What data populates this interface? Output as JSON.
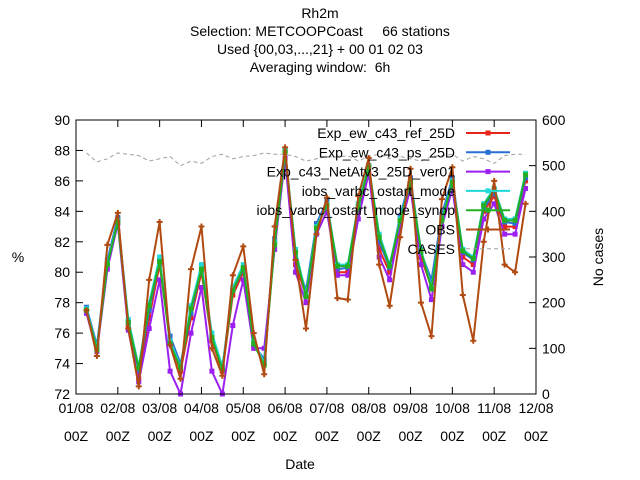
{
  "chart_data": {
    "type": "line",
    "title_lines": [
      "Rh2m",
      "Selection: METCOOPCoast     66 stations",
      "Used {00,03,...,21} + 00 01 02 03",
      "Averaging window:  6h"
    ],
    "xlabel": "Date",
    "ylabel": "%",
    "y2label": "No cases",
    "xlim": [
      0,
      11
    ],
    "ylim": [
      72,
      90
    ],
    "y2lim": [
      0,
      600
    ],
    "yticks": [
      "72",
      "74",
      "76",
      "78",
      "80",
      "82",
      "84",
      "86",
      "88",
      "90"
    ],
    "y2ticks": [
      "0",
      "100",
      "200",
      "300",
      "400",
      "500",
      "600"
    ],
    "xticks": [
      {
        "top": "01/08",
        "bottom": "00Z"
      },
      {
        "top": "02/08",
        "bottom": "00Z"
      },
      {
        "top": "03/08",
        "bottom": "00Z"
      },
      {
        "top": "04/08",
        "bottom": "00Z"
      },
      {
        "top": "05/08",
        "bottom": "00Z"
      },
      {
        "top": "06/08",
        "bottom": "00Z"
      },
      {
        "top": "07/08",
        "bottom": "00Z"
      },
      {
        "top": "08/08",
        "bottom": "00Z"
      },
      {
        "top": "09/08",
        "bottom": "00Z"
      },
      {
        "top": "10/08",
        "bottom": "00Z"
      },
      {
        "top": "11/08",
        "bottom": "00Z"
      },
      {
        "top": "12/08",
        "bottom": "00Z"
      }
    ],
    "legend_position": "top-right",
    "x": [
      0.25,
      0.5,
      0.75,
      1.0,
      1.25,
      1.5,
      1.75,
      2.0,
      2.25,
      2.5,
      2.75,
      3.0,
      3.25,
      3.5,
      3.75,
      4.0,
      4.25,
      4.5,
      4.75,
      5.0,
      5.25,
      5.5,
      5.75,
      6.0,
      6.25,
      6.5,
      6.75,
      7.0,
      7.25,
      7.5,
      7.75,
      8.0,
      8.25,
      8.5,
      8.75,
      9.0,
      9.25,
      9.5,
      9.75,
      10.0,
      10.25,
      10.5,
      10.75
    ],
    "series": [
      {
        "name": "Exp_ew_c43_ref_25D",
        "color": "#e8251a",
        "marker": "square",
        "axis": "y",
        "values": [
          77.5,
          75.0,
          80.5,
          83.5,
          76.5,
          73.0,
          77.0,
          80.5,
          75.5,
          73.5,
          77.0,
          80.0,
          75.5,
          73.5,
          78.5,
          80.0,
          75.5,
          74.0,
          82.0,
          88.0,
          80.5,
          78.5,
          83.0,
          84.5,
          80.0,
          80.0,
          84.0,
          87.0,
          81.5,
          80.0,
          83.5,
          86.0,
          81.0,
          79.0,
          83.5,
          86.0,
          81.0,
          80.5,
          84.0,
          85.0,
          83.0,
          83.0,
          86.0
        ]
      },
      {
        "name": "Exp_ew_c43_ps_25D",
        "color": "#2b6fd4",
        "marker": "square",
        "axis": "y",
        "values": [
          77.7,
          75.2,
          80.8,
          83.6,
          76.8,
          73.5,
          77.5,
          80.8,
          75.8,
          74.0,
          77.3,
          80.3,
          75.8,
          73.8,
          78.8,
          80.2,
          75.2,
          74.3,
          82.2,
          88.0,
          81.0,
          78.8,
          83.2,
          84.7,
          80.2,
          80.3,
          84.2,
          87.0,
          82.0,
          80.3,
          83.7,
          86.2,
          81.3,
          79.5,
          83.8,
          86.2,
          81.3,
          80.8,
          84.2,
          85.2,
          83.3,
          83.2,
          86.2
        ]
      },
      {
        "name": "Exp_c43_NetAtv3_25D_ver01",
        "color": "#9b1ff0",
        "marker": "square",
        "axis": "y",
        "values": [
          77.3,
          74.8,
          80.2,
          83.2,
          76.2,
          72.8,
          76.3,
          79.5,
          73.5,
          72.0,
          76.0,
          79.0,
          73.5,
          72.0,
          76.5,
          79.5,
          75.0,
          75.0,
          81.5,
          87.5,
          80.0,
          78.0,
          82.5,
          84.0,
          79.8,
          79.8,
          83.5,
          86.5,
          81.0,
          79.5,
          83.0,
          85.5,
          80.5,
          78.2,
          83.0,
          85.5,
          80.5,
          80.0,
          83.5,
          84.5,
          82.5,
          82.5,
          85.5
        ]
      },
      {
        "name": "iobs_varbc_ostart_mode",
        "color": "#20d8d8",
        "marker": "square",
        "axis": "y",
        "values": [
          77.6,
          75.0,
          80.6,
          83.4,
          76.9,
          73.8,
          78.0,
          81.0,
          75.5,
          73.8,
          77.8,
          80.5,
          76.0,
          73.8,
          79.0,
          80.5,
          75.5,
          74.0,
          82.0,
          88.0,
          81.5,
          78.5,
          83.0,
          84.5,
          80.5,
          80.5,
          84.5,
          87.0,
          82.5,
          80.5,
          83.5,
          86.0,
          81.5,
          79.0,
          83.5,
          86.0,
          81.5,
          81.0,
          84.5,
          85.5,
          83.5,
          83.5,
          86.5
        ]
      },
      {
        "name": "iobs_varbc_ostart_mode_synop",
        "color": "#22b022",
        "marker": "square",
        "axis": "y",
        "values": [
          77.5,
          74.9,
          80.5,
          83.3,
          76.7,
          73.7,
          77.8,
          80.7,
          75.3,
          73.7,
          77.6,
          80.2,
          75.7,
          73.6,
          78.8,
          80.3,
          75.3,
          73.9,
          81.8,
          87.9,
          81.3,
          78.4,
          82.9,
          84.4,
          80.4,
          80.4,
          84.3,
          86.9,
          82.3,
          80.4,
          83.4,
          85.9,
          81.4,
          78.9,
          83.4,
          85.9,
          81.4,
          80.9,
          84.4,
          85.4,
          83.4,
          83.4,
          86.4
        ]
      },
      {
        "name": "OBS",
        "color": "#b04a10",
        "marker": "plus",
        "axis": "y",
        "values": [
          77.5,
          74.5,
          81.8,
          83.9,
          76.3,
          72.5,
          79.5,
          83.3,
          75.2,
          73.0,
          80.2,
          83.0,
          75.0,
          73.2,
          79.8,
          81.7,
          76.0,
          73.3,
          83.0,
          88.2,
          80.8,
          76.3,
          82.5,
          84.9,
          78.3,
          78.2,
          85.0,
          87.5,
          80.5,
          77.8,
          82.3,
          86.8,
          78.0,
          75.8,
          84.8,
          86.9,
          78.5,
          75.5,
          82.0,
          86.0,
          80.5,
          80.0,
          84.5
        ]
      },
      {
        "name": "CASES",
        "color": "#a0a0a0",
        "marker": "none",
        "dashed": true,
        "axis": "y2",
        "values": [
          528,
          508,
          515,
          528,
          525,
          522,
          510,
          515,
          520,
          500,
          510,
          505,
          520,
          525,
          515,
          520,
          522,
          528,
          525,
          525,
          520,
          510,
          515,
          520,
          518,
          522,
          510,
          520,
          525,
          515,
          520,
          515,
          510,
          520,
          522,
          525,
          510,
          520,
          515,
          505,
          522,
          525,
          525
        ]
      }
    ]
  }
}
